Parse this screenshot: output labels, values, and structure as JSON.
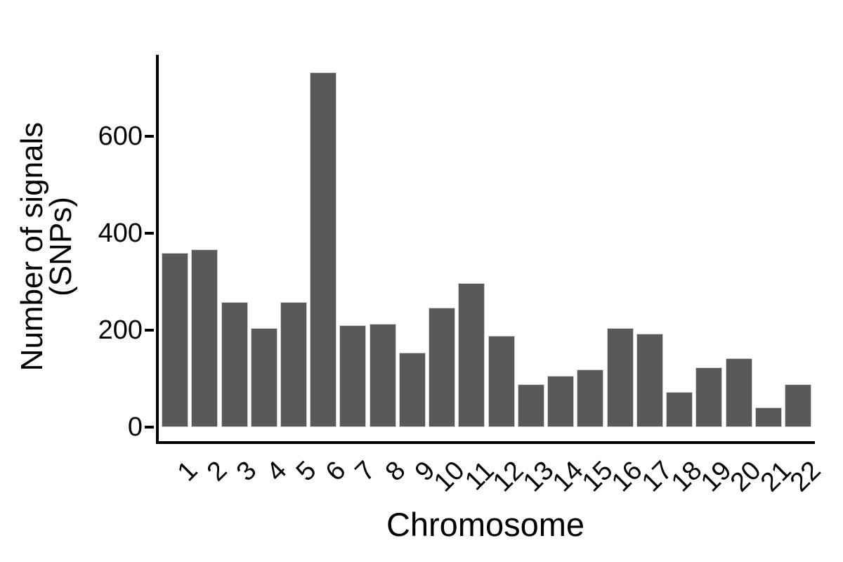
{
  "chart_data": {
    "type": "bar",
    "title": "",
    "xlabel": "Chromosome",
    "ylabel": "Number of signals (SNPs)",
    "ylabel_lines": [
      "Number of signals",
      "(SNPs)"
    ],
    "categories": [
      "1",
      "2",
      "3",
      "4",
      "5",
      "6",
      "7",
      "8",
      "9",
      "10",
      "11",
      "12",
      "13",
      "14",
      "15",
      "16",
      "17",
      "18",
      "19",
      "20",
      "21",
      "22"
    ],
    "values": [
      359,
      367,
      258,
      204,
      258,
      732,
      210,
      213,
      153,
      246,
      297,
      189,
      89,
      106,
      119,
      205,
      193,
      72,
      123,
      142,
      41,
      88
    ],
    "yticks": [
      0,
      200,
      400,
      600
    ],
    "ylim": [
      0,
      768
    ],
    "grid": "off",
    "legend": "none",
    "bar_color": "#595959",
    "axis_color": "#000000",
    "background_color": "#ffffff"
  }
}
